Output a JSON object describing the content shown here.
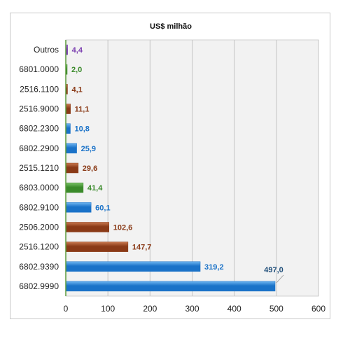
{
  "chart_data": {
    "type": "bar",
    "orientation": "horizontal",
    "title": "US$ milhão",
    "xlabel": "",
    "ylabel": "",
    "xlim": [
      0,
      600
    ],
    "xticks": [
      "0",
      "100",
      "200",
      "300",
      "400",
      "500",
      "600"
    ],
    "grid": true,
    "legend": "none",
    "categories": [
      "Outros",
      "6801.0000",
      "2516.1100",
      "2516.9000",
      "6802.2300",
      "6802.2900",
      "2515.1210",
      "6803.0000",
      "6802.9100",
      "2506.2000",
      "2516.1200",
      "6802.9390",
      "6802.9990"
    ],
    "values": [
      4.4,
      2.0,
      4.1,
      11.1,
      10.8,
      25.9,
      29.6,
      41.4,
      60.1,
      102.6,
      147.7,
      319.2,
      497.0
    ],
    "value_labels": [
      "4,4",
      "2,0",
      "4,1",
      "11,1",
      "10,8",
      "25,9",
      "29,6",
      "41,4",
      "60,1",
      "102,6",
      "147,7",
      "319,2",
      "497,0"
    ],
    "colors": [
      "purple",
      "green",
      "brown",
      "brown",
      "blue",
      "blue",
      "brown",
      "green",
      "blue",
      "brown",
      "brown",
      "blue",
      "blue"
    ],
    "palette": {
      "purple": {
        "fill": "#7b3fb0",
        "light": "#b07ad8",
        "label": "#7b3fb0"
      },
      "green": {
        "fill": "#3a8a2a",
        "light": "#7cc46a",
        "label": "#3a8a2a"
      },
      "brown": {
        "fill": "#8a3a17",
        "light": "#c9794f",
        "label": "#8a3a17"
      },
      "blue": {
        "fill": "#1a72c8",
        "light": "#6db4f0",
        "label": "#1a72c8"
      }
    },
    "callout_label_color": "#1f4e79"
  }
}
